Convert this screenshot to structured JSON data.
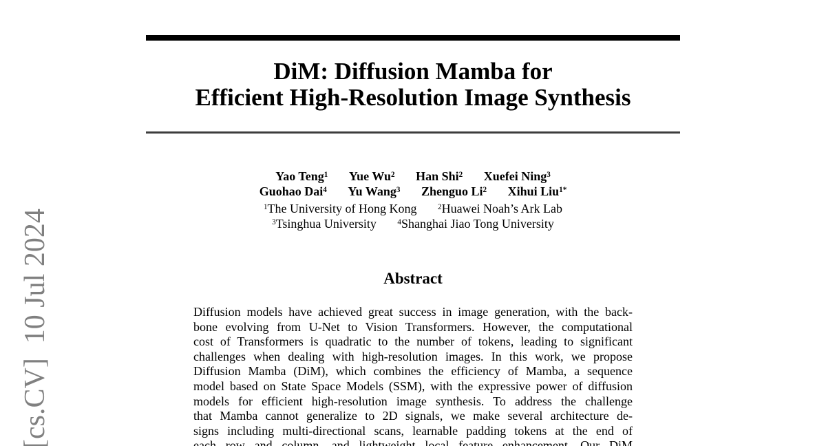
{
  "colors": {
    "page_background": "#ffffff",
    "text": "#000000",
    "watermark_gray": "#808080",
    "rule_thick": "#000000",
    "rule_thin": "#3d3d3d"
  },
  "watermark": {
    "text": "[cs.CV]  10 Jul 2024"
  },
  "title": {
    "line1": "DiM: Diffusion Mamba for",
    "line2": "Efficient High-Resolution Image Synthesis"
  },
  "authors": {
    "row1": [
      {
        "name": "Yao Teng",
        "sup": "1"
      },
      {
        "name": "Yue Wu",
        "sup": "2"
      },
      {
        "name": "Han Shi",
        "sup": "2"
      },
      {
        "name": "Xuefei Ning",
        "sup": "3"
      }
    ],
    "row2": [
      {
        "name": "Guohao Dai",
        "sup": "4"
      },
      {
        "name": "Yu Wang",
        "sup": "3"
      },
      {
        "name": "Zhenguo Li",
        "sup": "2"
      },
      {
        "name": "Xihui Liu",
        "sup": "1*"
      }
    ]
  },
  "affiliations": {
    "row1": [
      {
        "sup": "1",
        "name": "The University of Hong Kong"
      },
      {
        "sup": "2",
        "name": "Huawei Noah’s Ark Lab"
      }
    ],
    "row2": [
      {
        "sup": "3",
        "name": "Tsinghua University"
      },
      {
        "sup": "4",
        "name": "Shanghai Jiao Tong University"
      }
    ]
  },
  "abstract": {
    "heading": "Abstract",
    "lines": [
      "Diffusion models have achieved great success in image generation, with the back-",
      "bone evolving from U-Net to Vision Transformers. However, the computational",
      "cost of Transformers is quadratic to the number of tokens, leading to significant",
      "challenges when dealing with high-resolution images. In this work, we propose",
      "Diffusion Mamba (DiM), which combines the efficiency of Mamba, a sequence",
      "model based on State Space Models (SSM), with the expressive power of diffusion",
      "models for efficient high-resolution image synthesis. To address the challenge",
      "that Mamba cannot generalize to 2D signals, we make several architecture de-",
      "signs including multi-directional scans, learnable padding tokens at the end of",
      "each row and column, and lightweight local feature enhancement. Our DiM"
    ]
  }
}
